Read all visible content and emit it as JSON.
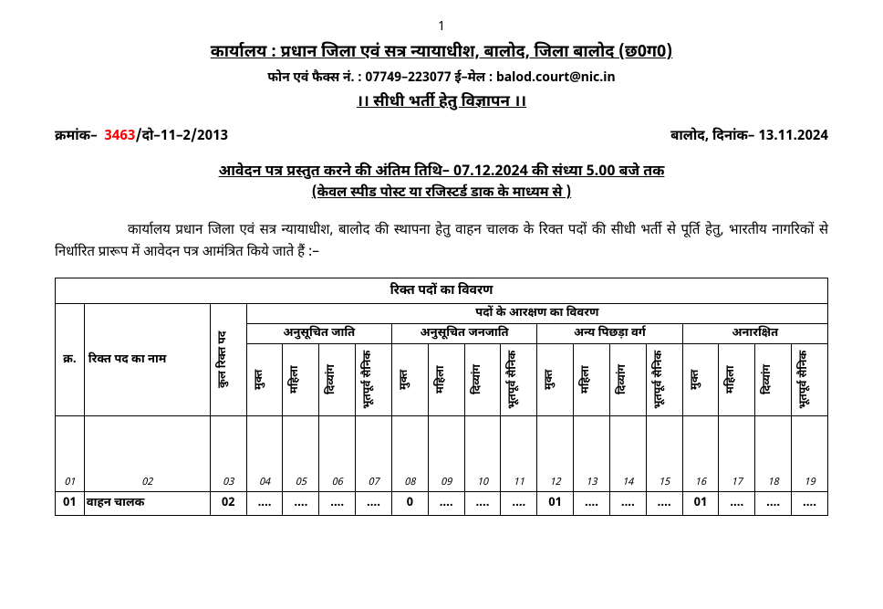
{
  "page_number": "1",
  "office_title": "कार्यालय : प्रधान जिला एवं सत्र न्यायाधीश, बालोद, जिला बालोद (छ0ग0)",
  "contact_line": "फोन एवं फैक्स नं. : 07749–223077 ई–मेल : balod.court@nic.in",
  "ad_title": "।। सीधी भर्ती हेतु विज्ञापन ।।",
  "ref_prefix": "क्रमांक–",
  "ref_number": "3463",
  "ref_suffix": "/दो–11–2/2013",
  "place_date": "बालोद, दिनांक– 13.11.2024",
  "deadline_line": "आवेदन पत्र प्रस्तुत करने की अंतिम तिथि– 07.12.2024 की संध्या 5.00 बजे तक",
  "mode_line": "(केवल स्पीड पोस्ट या रजिस्टर्ड डाक के माध्यम से )",
  "intro_text": "कार्यालय प्रधान जिला एवं सत्र न्यायाधीश, बालोद की स्थापना हेतु वाहन चालक के रिक्त पदों की सीधी भर्ती से पूर्ति हेतु, भारतीय नागरिकों से निर्धारित प्रारूप में आवेदन पत्र आमंत्रित किये जाते हैं :–",
  "table": {
    "title": "रिक्त पदों का विवरण",
    "headers": {
      "sno": "क्र.",
      "post_name": "रिक्त पद का नाम",
      "total_posts": "कुल रिक्त पद",
      "reservation_title": "पदों के आरक्षण का विवरण",
      "categories": [
        "अनुसूचित जाति",
        "अनुसूचित जनजाति",
        "अन्य पिछड़ा वर्ग",
        "अनारक्षित"
      ],
      "subcats": [
        "मुक्त",
        "महिला",
        "दिव्यांग",
        "भूतपूर्व सैनिक"
      ]
    },
    "col_nums": [
      "01",
      "02",
      "03",
      "04",
      "05",
      "06",
      "07",
      "08",
      "09",
      "10",
      "11",
      "12",
      "13",
      "14",
      "15",
      "16",
      "17",
      "18",
      "19"
    ],
    "row": {
      "sno": "01",
      "name": "वाहन चालक",
      "total": "02",
      "sc": [
        "....",
        "....",
        "....",
        "...."
      ],
      "st": [
        "0",
        "....",
        "....",
        "...."
      ],
      "obc": [
        "01",
        "....",
        "....",
        "...."
      ],
      "ur": [
        "01",
        "....",
        "....",
        "...."
      ]
    }
  }
}
